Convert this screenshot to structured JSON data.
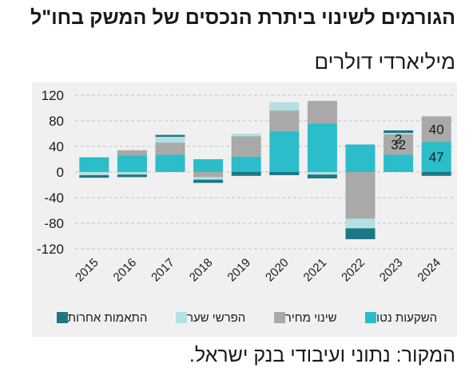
{
  "chart_data": {
    "type": "bar",
    "stacked": true,
    "title": "הגורמים לשינוי ביתרת הנכסים של המשק בחו\"ל",
    "subtitle": "מיליארדי דולרים",
    "source": "המקור: נתוני ועיבודי בנק ישראל.",
    "categories": [
      "2015",
      "2016",
      "2017",
      "2018",
      "2019",
      "2020",
      "2021",
      "2022",
      "2023",
      "2024"
    ],
    "ylim": [
      -120,
      120
    ],
    "yticks": [
      120,
      80,
      40,
      0,
      -40,
      -80,
      -120
    ],
    "ytick_labels": [
      "120",
      "80",
      "40",
      "0",
      "-40",
      "-80",
      "-120"
    ],
    "grid": true,
    "legend_position": "bottom",
    "series": [
      {
        "name": "השקעות נטו",
        "color": "#2bbdca",
        "values": [
          23,
          26,
          27,
          20,
          24,
          64,
          76,
          43,
          27,
          47
        ]
      },
      {
        "name": "שינוי מחיר",
        "color": "#a9a9a9",
        "values": [
          0,
          8,
          19,
          -8,
          32,
          32,
          35,
          -73,
          32,
          40
        ]
      },
      {
        "name": "הפרשי שער",
        "color": "#b2e0e4",
        "values": [
          -5,
          -4,
          9,
          -4,
          4,
          13,
          -4,
          -15,
          2,
          0
        ]
      },
      {
        "name": "התאמות אחרות",
        "color": "#1e7785",
        "values": [
          -4,
          -4,
          3,
          -5,
          -6,
          -5,
          -6,
          -17,
          4,
          -6
        ]
      }
    ],
    "annotations": [
      {
        "category": "2023",
        "series": "שינוי מחיר",
        "text": "32"
      },
      {
        "category": "2023",
        "series": "הפרשי שער",
        "text": "2"
      },
      {
        "category": "2024",
        "series": "שינוי מחיר",
        "text": "40"
      },
      {
        "category": "2024",
        "series": "השקעות נטו",
        "text": "47"
      }
    ]
  }
}
